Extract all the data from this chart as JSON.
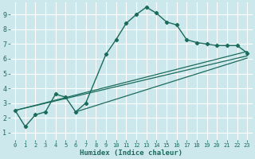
{
  "xlabel": "Humidex (Indice chaleur)",
  "bg_color": "#cce8ec",
  "grid_color": "#ffffff",
  "line_color": "#1a6b5a",
  "xlim": [
    -0.5,
    23.5
  ],
  "ylim": [
    0.5,
    9.8
  ],
  "xticks": [
    0,
    1,
    2,
    3,
    4,
    5,
    6,
    7,
    8,
    9,
    10,
    11,
    12,
    13,
    14,
    15,
    16,
    17,
    18,
    19,
    20,
    21,
    22,
    23
  ],
  "yticks": [
    1,
    2,
    3,
    4,
    5,
    6,
    7,
    8,
    9
  ],
  "main_x": [
    0,
    1,
    2,
    3,
    4,
    5,
    6,
    7,
    9,
    10,
    11,
    12,
    13,
    14,
    15,
    16,
    17,
    18,
    19,
    20,
    21,
    22,
    23
  ],
  "main_y": [
    2.5,
    1.4,
    2.2,
    2.4,
    3.6,
    3.4,
    2.4,
    3.0,
    6.3,
    7.3,
    8.4,
    9.0,
    9.5,
    9.1,
    8.5,
    8.3,
    7.3,
    7.1,
    7.0,
    6.9,
    6.9,
    6.9,
    6.4
  ],
  "line2_x": [
    0,
    23
  ],
  "line2_y": [
    2.5,
    6.5
  ],
  "line3_x": [
    0,
    23
  ],
  "line3_y": [
    2.5,
    6.2
  ],
  "line4_x": [
    6,
    23
  ],
  "line4_y": [
    2.4,
    6.05
  ]
}
